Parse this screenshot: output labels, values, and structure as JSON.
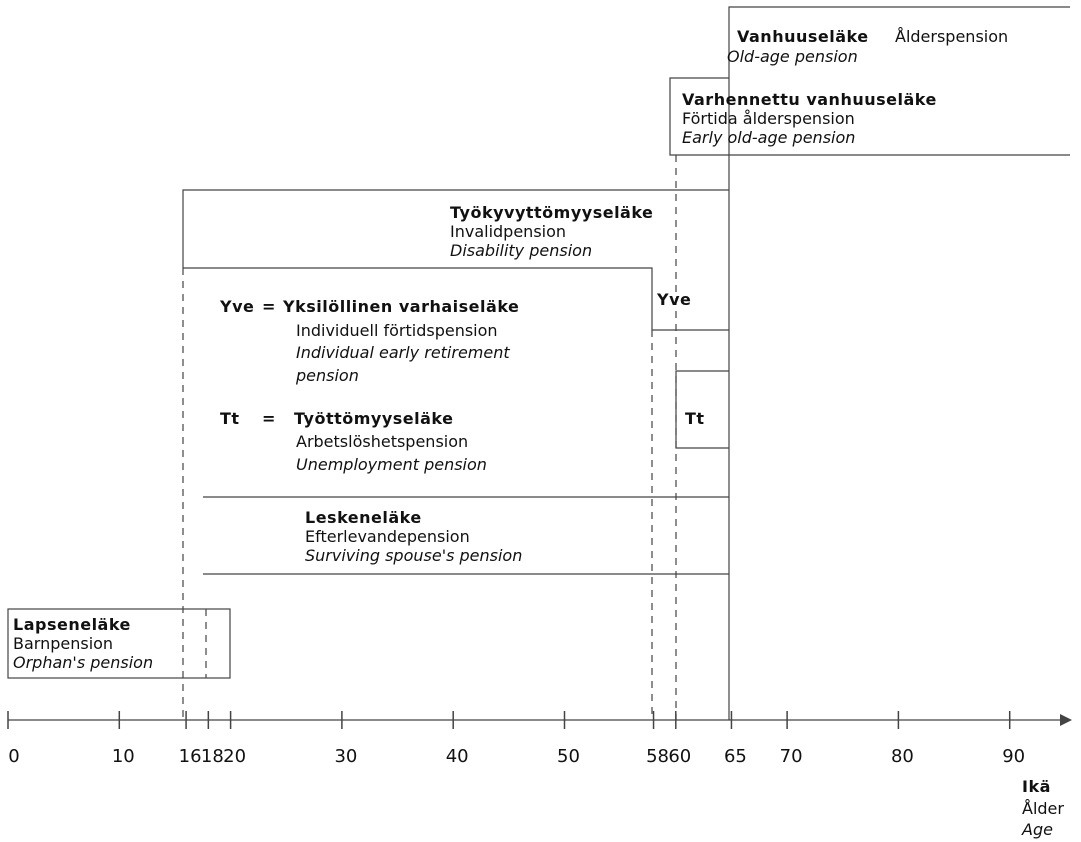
{
  "boxes": [
    {
      "title": "Vanhuuseläke",
      "swedish": "Ålderspension",
      "english": "Old-age pension"
    },
    {
      "title": "Varhennettu vanhuuseläke",
      "swedish": "Förtida ålderspension",
      "english": "Early old-age pension"
    },
    {
      "title": "Työkyvyttömyyseläke",
      "swedish": "Invalidpension",
      "english": "Disability pension"
    },
    {
      "title": "Leskeneläke",
      "swedish": "Efterlevandepension",
      "english": "Surviving spouse's pension"
    },
    {
      "title": "Lapseneläke",
      "swedish": "Barnpension",
      "english": "Orphan's pension"
    }
  ],
  "legend": [
    {
      "abbr": "Yve",
      "sign": "=",
      "title": "Yksilöllinen varhaiseläke",
      "swedish": "Individuell förtidspension",
      "english": [
        "Individual early retirement",
        "pension"
      ]
    },
    {
      "abbr": "Tt",
      "sign": "=",
      "title": "Työttömyyseläke",
      "swedish": "Arbetslöshetspension",
      "english": [
        "Unemployment pension"
      ]
    }
  ],
  "markers": [
    "Yve",
    "Tt"
  ],
  "axis": {
    "ticks": [
      0,
      10,
      16,
      18,
      20,
      30,
      40,
      50,
      58,
      60,
      65,
      70,
      80,
      90
    ],
    "label": [
      "Ikä",
      "Ålder",
      "Age"
    ]
  }
}
